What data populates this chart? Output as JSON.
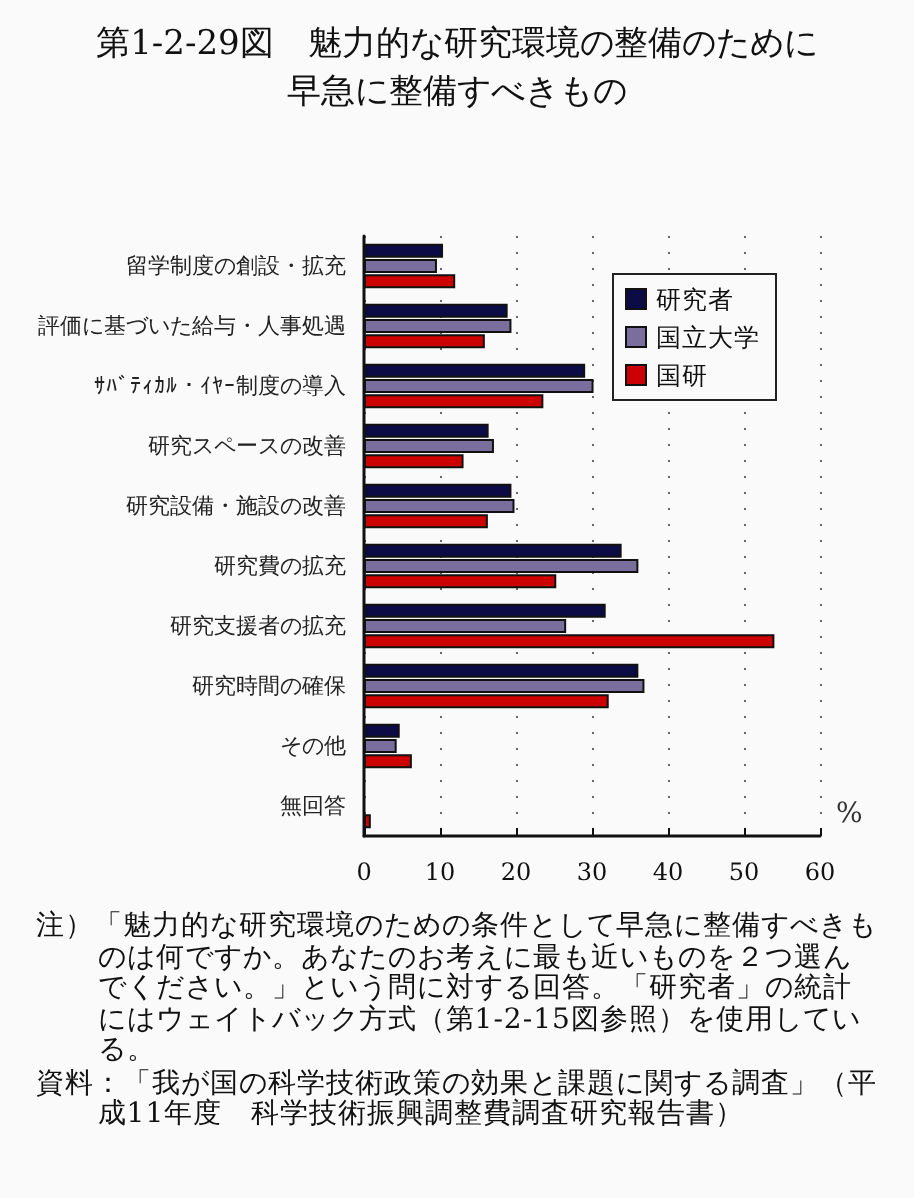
{
  "chart_data": {
    "type": "bar",
    "orientation": "horizontal",
    "title": "第1-2-29図　魅力的な研究環境の整備のために早急に整備すべきもの",
    "xlabel": "%",
    "categories": [
      "留学制度の創設・拡充",
      "評価に基づいた給与・人事処遇",
      "ｻﾊﾞﾃｨｶﾙ・ｲﾔｰ制度の導入",
      "研究スペースの改善",
      "研究設備・施設の改善",
      "研究費の拡充",
      "研究支援者の拡充",
      "研究時間の確保",
      "その他",
      "無回答"
    ],
    "series": [
      {
        "name": "研究者",
        "color": "#0b0b45",
        "values": [
          10.4,
          18.9,
          29.1,
          16.4,
          19.4,
          33.9,
          31.8,
          36.1,
          4.7,
          null
        ]
      },
      {
        "name": "国立大学",
        "color": "#7a6e9c",
        "values": [
          9.6,
          19.4,
          30.2,
          17.1,
          19.8,
          36.1,
          26.6,
          36.9,
          4.3,
          null
        ]
      },
      {
        "name": "国研",
        "color": "#cc0000",
        "values": [
          12.0,
          15.9,
          23.6,
          13.1,
          16.3,
          25.3,
          54.0,
          32.2,
          6.3,
          0.9
        ]
      }
    ],
    "xlim": [
      0,
      60
    ],
    "xticks": [
      0,
      10,
      20,
      30,
      40,
      50,
      60
    ],
    "grid": "x",
    "legend": "top right",
    "annotations": [
      "注）「魅力的な研究環境のための条件として早急に整備すべきものは何ですか。あなたのお考えに最も近いものを２つ選んでください。」という問に対する回答。「研究者」の統計にはウェイトバック方式（第1-2-15図参照）を使用している。",
      "資料：「我が国の科学技術政策の効果と課題に関する調査」（平成11年度　科学技術振興調整費調査研究報告書）"
    ]
  }
}
